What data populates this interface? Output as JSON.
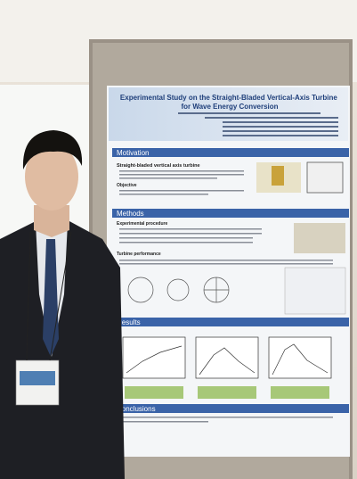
{
  "poster": {
    "title": "Experimental Study on the Straight-Bladed Vertical-Axis Turbine for Wave Energy Conversion",
    "sections": [
      {
        "heading": "Motivation",
        "subheadings": [
          "Straight-bladed vertical axis turbine",
          "Objective"
        ]
      },
      {
        "heading": "Methods",
        "subheadings": [
          "Experimental procedure",
          "Turbine performance"
        ]
      },
      {
        "heading": "Results",
        "subheadings": []
      },
      {
        "heading": "Conclusions",
        "subheadings": []
      }
    ]
  }
}
